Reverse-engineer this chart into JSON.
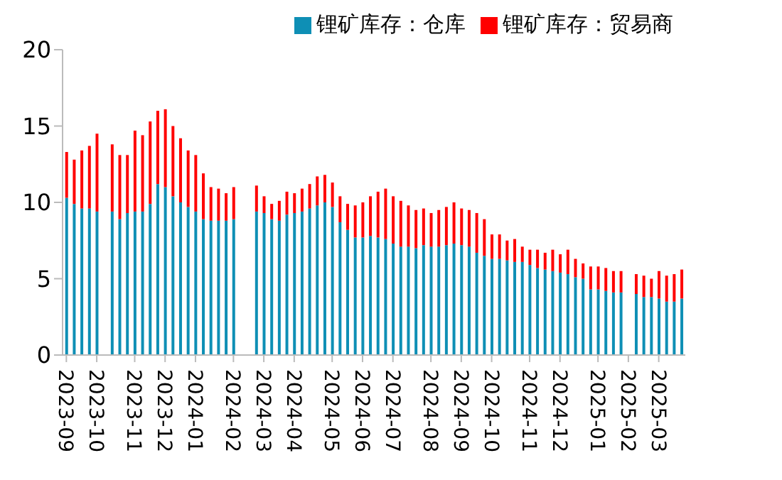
{
  "chart_data": {
    "type": "bar",
    "stacked": true,
    "categories": [
      "2023-09",
      null,
      null,
      null,
      "2023-10",
      null,
      null,
      null,
      null,
      "2023-11",
      null,
      null,
      null,
      "2023-12",
      null,
      null,
      null,
      "2024-01",
      null,
      null,
      null,
      null,
      "2024-02",
      null,
      null,
      null,
      "2024-03",
      null,
      null,
      null,
      "2024-04",
      null,
      null,
      null,
      null,
      "2024-05",
      null,
      null,
      null,
      "2024-06",
      null,
      null,
      null,
      "2024-07",
      null,
      null,
      null,
      null,
      "2024-08",
      null,
      null,
      null,
      "2024-09",
      null,
      null,
      null,
      "2024-10",
      null,
      null,
      null,
      null,
      "2024-11",
      null,
      null,
      null,
      "2024-12",
      null,
      null,
      null,
      null,
      "2025-01",
      null,
      null,
      null,
      "2025-02",
      null,
      null,
      null,
      "2025-03",
      null,
      null,
      null
    ],
    "series": [
      {
        "name": "锂矿库存：仓库",
        "color": "#0e8fb5",
        "values": [
          10.3,
          9.9,
          9.6,
          9.6,
          9.4,
          null,
          9.4,
          8.9,
          9.3,
          9.4,
          9.4,
          9.9,
          11.2,
          11.0,
          10.4,
          10.0,
          9.7,
          9.4,
          8.9,
          8.8,
          8.8,
          8.8,
          8.9,
          null,
          null,
          9.4,
          9.3,
          8.9,
          8.8,
          9.2,
          9.3,
          9.4,
          9.6,
          9.8,
          10.0,
          9.7,
          8.7,
          8.2,
          7.7,
          7.7,
          7.8,
          7.7,
          7.6,
          7.3,
          7.1,
          7.1,
          7.0,
          7.2,
          7.1,
          7.1,
          7.2,
          7.3,
          7.2,
          7.1,
          6.7,
          6.5,
          6.3,
          6.3,
          6.2,
          6.1,
          6.1,
          5.9,
          5.7,
          5.6,
          5.5,
          5.4,
          5.3,
          5.1,
          5.0,
          4.3,
          4.3,
          4.2,
          4.1,
          4.1,
          null,
          4.0,
          3.8,
          3.8,
          3.7,
          3.5,
          3.5,
          3.7
        ]
      },
      {
        "name": "锂矿库存：贸易商",
        "color": "#ff0000",
        "values": [
          3.0,
          2.9,
          3.8,
          4.1,
          5.1,
          null,
          4.4,
          4.2,
          3.8,
          5.3,
          5.0,
          5.4,
          4.8,
          5.1,
          4.6,
          4.2,
          3.7,
          3.7,
          3.0,
          2.2,
          2.1,
          1.8,
          2.1,
          null,
          null,
          1.7,
          1.1,
          1.0,
          1.3,
          1.5,
          1.3,
          1.5,
          1.6,
          1.9,
          1.8,
          1.6,
          1.7,
          1.7,
          2.1,
          2.3,
          2.6,
          3.0,
          3.3,
          3.1,
          3.0,
          2.7,
          2.5,
          2.4,
          2.2,
          2.4,
          2.5,
          2.7,
          2.4,
          2.4,
          2.6,
          2.4,
          1.6,
          1.6,
          1.3,
          1.5,
          1.0,
          1.0,
          1.2,
          1.1,
          1.4,
          1.2,
          1.6,
          1.2,
          1.0,
          1.5,
          1.5,
          1.5,
          1.4,
          1.4,
          null,
          1.3,
          1.4,
          1.2,
          1.8,
          1.7,
          1.8,
          1.9
        ]
      }
    ],
    "ylim": [
      0,
      20
    ],
    "yticks": [
      0,
      5,
      10,
      15,
      20
    ],
    "legend": "top"
  }
}
